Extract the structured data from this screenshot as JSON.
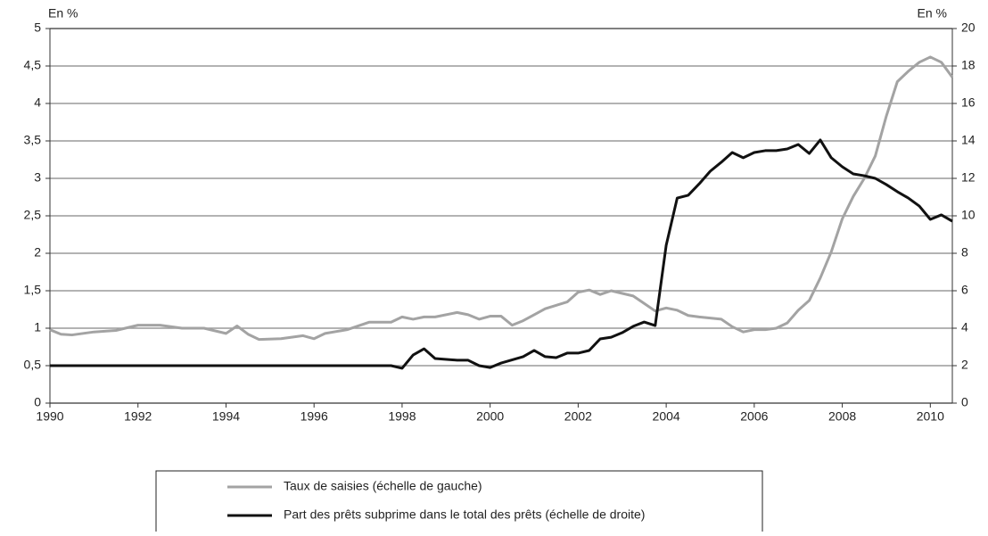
{
  "chart_data": {
    "type": "line",
    "y_label": "En %",
    "y2_label": "En %",
    "xlim": [
      1990,
      2010.5
    ],
    "xticks": [
      1990,
      1992,
      1994,
      1996,
      1998,
      2000,
      2002,
      2004,
      2006,
      2008,
      2010
    ],
    "ylim": [
      0,
      5
    ],
    "yticks": [
      0,
      {
        "value": 0.5,
        "label": "0,5"
      },
      1,
      {
        "value": 1.5,
        "label": "1,5"
      },
      2,
      {
        "value": 2.5,
        "label": "2,5"
      },
      3,
      {
        "value": 3.5,
        "label": "3,5"
      },
      4,
      {
        "value": 4.5,
        "label": "4,5"
      },
      5
    ],
    "y2lim": [
      0,
      20
    ],
    "y2ticks": [
      0,
      2,
      4,
      6,
      8,
      10,
      12,
      14,
      16,
      18,
      20
    ],
    "grid": true,
    "legend": "bottom",
    "series": [
      {
        "name": "Taux de saisies (échelle de gauche)",
        "color": "#a3a3a3",
        "axis": "y",
        "x": [
          1990,
          1990.25,
          1990.5,
          1991,
          1991.5,
          1992,
          1992.5,
          1993,
          1993.5,
          1994,
          1994.25,
          1994.5,
          1994.75,
          1995.25,
          1995.75,
          1996,
          1996.25,
          1996.75,
          1997.25,
          1997.75,
          1998,
          1998.25,
          1998.5,
          1998.75,
          1999.25,
          1999.5,
          1999.75,
          2000,
          2000.25,
          2000.5,
          2000.75,
          2001,
          2001.25,
          2001.75,
          2002,
          2002.25,
          2002.5,
          2002.75,
          2003.25,
          2003.5,
          2003.75,
          2004,
          2004.25,
          2004.5,
          2004.75,
          2005.25,
          2005.5,
          2005.75,
          2006,
          2006.25,
          2006.5,
          2006.75,
          2007,
          2007.25,
          2007.5,
          2007.75,
          2008,
          2008.25,
          2008.5,
          2008.75,
          2009,
          2009.25,
          2009.5,
          2009.75,
          2010,
          2010.25,
          2010.5
        ],
        "values": [
          0.98,
          0.92,
          0.91,
          0.95,
          0.97,
          1.04,
          1.04,
          1.0,
          1.0,
          0.93,
          1.03,
          0.92,
          0.85,
          0.86,
          0.9,
          0.86,
          0.93,
          0.98,
          1.08,
          1.08,
          1.15,
          1.12,
          1.15,
          1.15,
          1.21,
          1.18,
          1.12,
          1.16,
          1.16,
          1.04,
          1.1,
          1.18,
          1.26,
          1.35,
          1.48,
          1.51,
          1.45,
          1.5,
          1.43,
          1.33,
          1.23,
          1.27,
          1.24,
          1.17,
          1.15,
          1.12,
          1.02,
          0.95,
          0.98,
          0.98,
          1.0,
          1.07,
          1.24,
          1.37,
          1.67,
          2.02,
          2.46,
          2.76,
          3.0,
          3.3,
          3.83,
          4.29,
          4.43,
          4.55,
          4.62,
          4.55,
          4.35
        ]
      },
      {
        "name": "Part des prêts subprime dans le total des prêts (échelle de droite)",
        "color": "#111111",
        "axis": "y2",
        "x": [
          1990,
          1997.75,
          1998,
          1998.25,
          1998.5,
          1998.75,
          1999.25,
          1999.5,
          1999.75,
          2000,
          2000.25,
          2000.75,
          2001,
          2001.25,
          2001.5,
          2001.75,
          2002,
          2002.25,
          2002.5,
          2002.75,
          2003,
          2003.25,
          2003.5,
          2003.75,
          2004,
          2004.25,
          2004.5,
          2004.75,
          2005,
          2005.25,
          2005.5,
          2005.75,
          2006,
          2006.25,
          2006.5,
          2006.75,
          2007,
          2007.25,
          2007.5,
          2007.75,
          2008,
          2008.25,
          2008.5,
          2008.75,
          2009,
          2009.25,
          2009.5,
          2009.75,
          2010,
          2010.25,
          2010.5
        ],
        "values": [
          2.0,
          2.0,
          1.86,
          2.57,
          2.9,
          2.38,
          2.29,
          2.29,
          2.0,
          1.9,
          2.14,
          2.48,
          2.81,
          2.48,
          2.43,
          2.67,
          2.67,
          2.81,
          3.43,
          3.52,
          3.76,
          4.1,
          4.33,
          4.14,
          8.43,
          10.95,
          11.1,
          11.71,
          12.38,
          12.86,
          13.38,
          13.1,
          13.38,
          13.48,
          13.48,
          13.57,
          13.81,
          13.33,
          14.05,
          13.1,
          12.62,
          12.24,
          12.14,
          12.0,
          11.67,
          11.29,
          10.95,
          10.52,
          9.81,
          10.05,
          9.71
        ]
      }
    ]
  }
}
